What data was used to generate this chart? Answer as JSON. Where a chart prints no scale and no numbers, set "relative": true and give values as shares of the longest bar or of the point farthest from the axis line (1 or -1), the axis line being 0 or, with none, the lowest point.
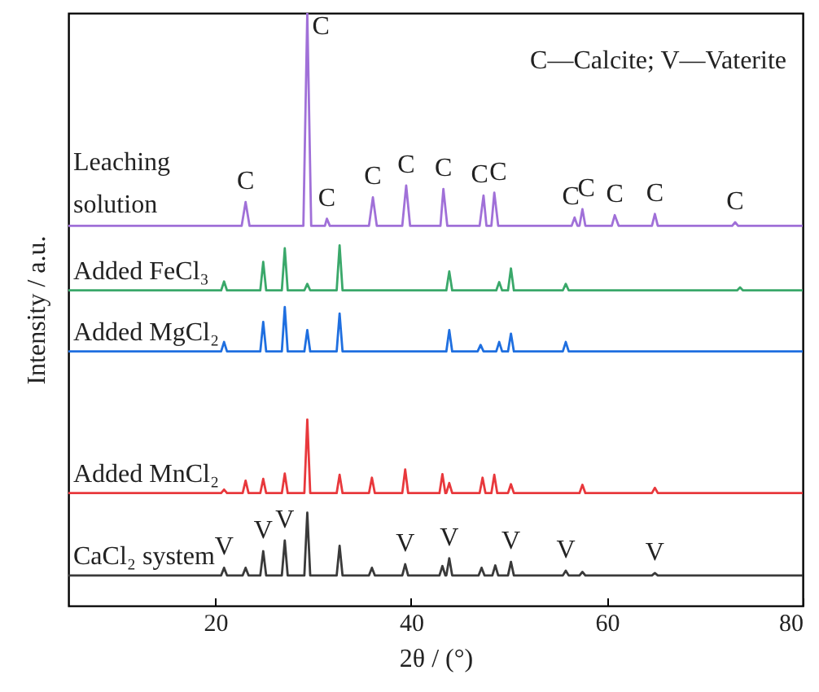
{
  "chart_data": {
    "type": "line",
    "relative": true,
    "xlabel": "2θ / (°)",
    "ylabel": "Intensity / a.u.",
    "xlim": [
      5,
      80
    ],
    "xticks": [
      20,
      40,
      60,
      80
    ],
    "line_style": "solid",
    "series": [
      {
        "name": "Leaching solution",
        "color": "#a070d8",
        "x": [
          5,
          22.7,
          23.1,
          23.5,
          29.0,
          29.4,
          29.8,
          31.2,
          31.4,
          31.7,
          35.7,
          36.1,
          36.5,
          39.1,
          39.5,
          39.9,
          43.0,
          43.3,
          43.7,
          47.0,
          47.4,
          47.7,
          48.2,
          48.5,
          48.9,
          56.4,
          56.7,
          57.0,
          57.2,
          57.5,
          57.8,
          60.5,
          60.8,
          61.2,
          64.6,
          64.9,
          65.2,
          72.8,
          73.1,
          73.4,
          80
        ],
        "values": [
          0.641,
          0.641,
          0.681,
          0.641,
          0.641,
          1.0,
          0.641,
          0.641,
          0.653,
          0.641,
          0.641,
          0.689,
          0.641,
          0.641,
          0.709,
          0.641,
          0.641,
          0.703,
          0.641,
          0.641,
          0.692,
          0.641,
          0.641,
          0.697,
          0.641,
          0.641,
          0.655,
          0.641,
          0.641,
          0.669,
          0.641,
          0.641,
          0.659,
          0.641,
          0.641,
          0.661,
          0.641,
          0.641,
          0.647,
          0.641,
          0.641
        ]
      },
      {
        "name": "Added FeCl₃",
        "color": "#3aa86a",
        "x": [
          5,
          20.6,
          20.9,
          21.2,
          24.6,
          24.9,
          25.2,
          26.8,
          27.1,
          27.4,
          29.1,
          29.4,
          29.7,
          32.4,
          32.7,
          33.0,
          43.6,
          43.9,
          44.2,
          48.7,
          49.0,
          49.3,
          49.9,
          50.2,
          50.5,
          55.5,
          55.8,
          56.1,
          73.3,
          73.6,
          73.9,
          80
        ],
        "values": [
          0.532,
          0.532,
          0.547,
          0.532,
          0.532,
          0.58,
          0.532,
          0.532,
          0.603,
          0.532,
          0.532,
          0.543,
          0.532,
          0.532,
          0.608,
          0.532,
          0.532,
          0.564,
          0.532,
          0.532,
          0.546,
          0.532,
          0.532,
          0.569,
          0.532,
          0.532,
          0.543,
          0.532,
          0.532,
          0.537,
          0.532,
          0.532
        ]
      },
      {
        "name": "Added MgCl₂",
        "color": "#1f6fe0",
        "x": [
          5,
          20.6,
          20.9,
          21.2,
          24.6,
          24.9,
          25.2,
          26.8,
          27.1,
          27.4,
          29.1,
          29.4,
          29.7,
          32.4,
          32.7,
          33.0,
          43.6,
          43.9,
          44.2,
          46.8,
          47.1,
          47.4,
          48.7,
          49.0,
          49.3,
          49.9,
          50.2,
          50.5,
          55.5,
          55.8,
          56.1,
          80
        ],
        "values": [
          0.429,
          0.429,
          0.445,
          0.429,
          0.429,
          0.479,
          0.429,
          0.429,
          0.504,
          0.429,
          0.429,
          0.465,
          0.429,
          0.429,
          0.493,
          0.429,
          0.429,
          0.465,
          0.429,
          0.429,
          0.44,
          0.429,
          0.429,
          0.445,
          0.429,
          0.429,
          0.459,
          0.429,
          0.429,
          0.445,
          0.429,
          0.429
        ]
      },
      {
        "name": "Added MnCl₂",
        "color": "#e8383c",
        "x": [
          5,
          20.6,
          20.9,
          21.2,
          22.8,
          23.1,
          23.4,
          24.6,
          24.9,
          25.2,
          26.8,
          27.1,
          27.4,
          29.1,
          29.4,
          29.7,
          32.4,
          32.7,
          33.0,
          35.7,
          36.0,
          36.3,
          39.1,
          39.4,
          39.7,
          42.9,
          43.2,
          43.5,
          43.6,
          43.9,
          44.2,
          47.0,
          47.3,
          47.6,
          48.2,
          48.5,
          48.8,
          49.9,
          50.2,
          50.5,
          57.2,
          57.5,
          57.8,
          64.6,
          64.9,
          65.2,
          80
        ],
        "values": [
          0.19,
          0.19,
          0.196,
          0.19,
          0.19,
          0.211,
          0.19,
          0.19,
          0.214,
          0.19,
          0.19,
          0.223,
          0.19,
          0.19,
          0.314,
          0.19,
          0.19,
          0.221,
          0.19,
          0.19,
          0.216,
          0.19,
          0.19,
          0.23,
          0.19,
          0.19,
          0.222,
          0.19,
          0.19,
          0.207,
          0.19,
          0.19,
          0.216,
          0.19,
          0.19,
          0.221,
          0.19,
          0.19,
          0.205,
          0.19,
          0.19,
          0.204,
          0.19,
          0.19,
          0.199,
          0.19,
          0.19
        ]
      },
      {
        "name": "CaCl₂ system",
        "color": "#3a3a3a",
        "x": [
          5,
          20.6,
          20.9,
          21.2,
          22.8,
          23.1,
          23.4,
          24.6,
          24.9,
          25.2,
          26.8,
          27.1,
          27.4,
          29.1,
          29.4,
          29.7,
          32.4,
          32.7,
          33.0,
          35.7,
          36.0,
          36.3,
          39.1,
          39.4,
          39.7,
          42.9,
          43.2,
          43.5,
          43.6,
          43.9,
          44.2,
          46.9,
          47.2,
          47.5,
          48.3,
          48.6,
          48.9,
          49.9,
          50.2,
          50.5,
          55.5,
          55.8,
          56.1,
          57.2,
          57.5,
          57.8,
          64.6,
          64.9,
          65.2,
          80
        ],
        "values": [
          0.051,
          0.051,
          0.064,
          0.051,
          0.051,
          0.064,
          0.051,
          0.051,
          0.092,
          0.051,
          0.051,
          0.11,
          0.051,
          0.051,
          0.157,
          0.051,
          0.051,
          0.101,
          0.051,
          0.051,
          0.064,
          0.051,
          0.051,
          0.07,
          0.051,
          0.051,
          0.067,
          0.051,
          0.051,
          0.08,
          0.051,
          0.051,
          0.064,
          0.051,
          0.051,
          0.068,
          0.051,
          0.051,
          0.074,
          0.051,
          0.051,
          0.059,
          0.051,
          0.051,
          0.057,
          0.051,
          0.051,
          0.055,
          0.051,
          0.051
        ]
      }
    ],
    "annotations": [
      "C—Calcite; V—Vaterite",
      {
        "text": "C",
        "x": 23.1,
        "y": 0.681
      },
      {
        "text": "C",
        "x": 29.4,
        "y": 1.0
      },
      {
        "text": "C",
        "x": 31.4,
        "y": 0.653
      },
      {
        "text": "C",
        "x": 36.1,
        "y": 0.689
      },
      {
        "text": "C",
        "x": 39.5,
        "y": 0.709
      },
      {
        "text": "C",
        "x": 43.3,
        "y": 0.703
      },
      {
        "text": "C",
        "x": 47.4,
        "y": 0.692
      },
      {
        "text": "C",
        "x": 48.5,
        "y": 0.697
      },
      {
        "text": "C",
        "x": 56.7,
        "y": 0.655
      },
      {
        "text": "C",
        "x": 57.5,
        "y": 0.669
      },
      {
        "text": "C",
        "x": 60.8,
        "y": 0.659
      },
      {
        "text": "C",
        "x": 64.9,
        "y": 0.661
      },
      {
        "text": "C",
        "x": 73.1,
        "y": 0.647
      },
      {
        "text": "V",
        "x": 20.9,
        "y": 0.064
      },
      {
        "text": "V",
        "x": 24.9,
        "y": 0.092
      },
      {
        "text": "V",
        "x": 27.1,
        "y": 0.11
      },
      {
        "text": "V",
        "x": 39.4,
        "y": 0.07
      },
      {
        "text": "V",
        "x": 43.9,
        "y": 0.08
      },
      {
        "text": "V",
        "x": 50.2,
        "y": 0.074
      },
      {
        "text": "V",
        "x": 55.8,
        "y": 0.059
      },
      {
        "text": "V",
        "x": 64.9,
        "y": 0.055
      }
    ]
  }
}
